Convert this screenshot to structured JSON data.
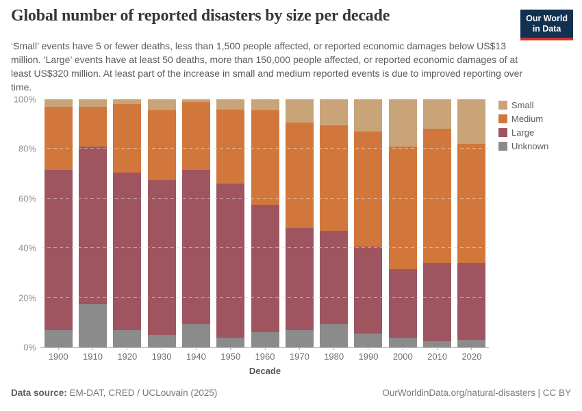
{
  "header": {
    "title": "Global number of reported disasters by size per decade",
    "logo": {
      "line1": "Our World",
      "line2": "in Data",
      "background": "#12304F",
      "accent": "#D0342C"
    }
  },
  "subtitle": "‘Small’ events have 5 or fewer deaths, less than 1,500 people affected, or reported economic damages below US$13 million. ‘Large’ events have at least 50 deaths, more than 150,000 people affected, or reported economic damages of at least US$320 million. At least part of the increase in small and medium reported events is due to improved reporting over time.",
  "chart_data": {
    "type": "bar",
    "stacked": true,
    "percentage": true,
    "title": "Global number of reported disasters by size per decade",
    "xlabel": "Decade",
    "ylabel": "",
    "ylim": [
      0,
      100
    ],
    "grid": "dashed-horizontal",
    "legend_position": "top-right",
    "yticks": [
      {
        "value": 0,
        "label": "0%"
      },
      {
        "value": 20,
        "label": "20%"
      },
      {
        "value": 40,
        "label": "40%"
      },
      {
        "value": 60,
        "label": "60%"
      },
      {
        "value": 80,
        "label": "80%"
      },
      {
        "value": 100,
        "label": "100%"
      }
    ],
    "categories": [
      "1900",
      "1910",
      "1920",
      "1930",
      "1940",
      "1950",
      "1960",
      "1970",
      "1980",
      "1990",
      "2000",
      "2010",
      "2020"
    ],
    "series": [
      {
        "name": "Small",
        "color": "#C9A478",
        "values": [
          3,
          3,
          2,
          4.5,
          1,
          4,
          4.5,
          9.5,
          10.5,
          13,
          19,
          12,
          18
        ]
      },
      {
        "name": "Medium",
        "color": "#D2773B",
        "values": [
          25.5,
          16,
          27.5,
          28,
          27.5,
          30,
          38,
          42.5,
          42.5,
          46.5,
          49.5,
          54,
          48
        ]
      },
      {
        "name": "Large",
        "color": "#9E5560",
        "values": [
          64.5,
          63.5,
          63.5,
          62.5,
          62,
          62,
          51.5,
          41,
          37.5,
          35,
          27.5,
          31.5,
          31
        ]
      },
      {
        "name": "Unknown",
        "color": "#8B8B8B",
        "values": [
          7,
          17.5,
          7,
          5,
          9.5,
          4,
          6,
          7,
          9.5,
          5.5,
          4,
          2.5,
          3
        ]
      }
    ]
  },
  "x_axis": {
    "label": "Decade"
  },
  "footer": {
    "datasource_label": "Data source:",
    "datasource_text": " EM-DAT, CRED / UCLouvain (2025)",
    "attribution": "OurWorldinData.org/natural-disasters | CC BY"
  }
}
